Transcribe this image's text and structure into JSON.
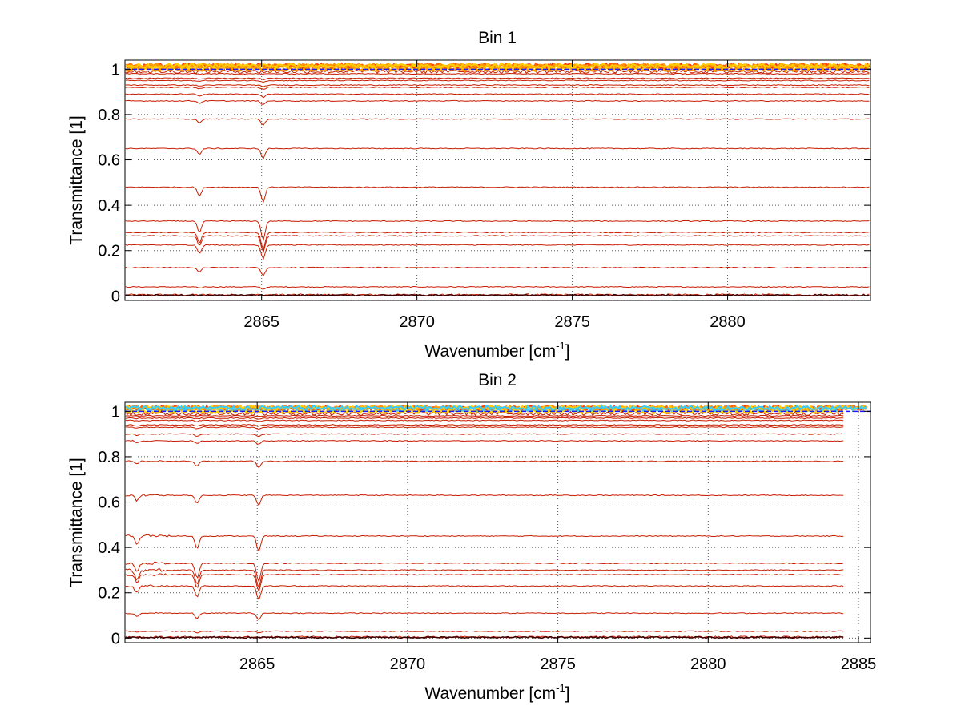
{
  "chart_data": [
    {
      "type": "line",
      "title": "Bin 1",
      "xlabel": "Wavenumber [cm",
      "xlabel_sup": "-1",
      "xlabel_end": "]",
      "ylabel": "Transmittance [1]",
      "xlim": [
        2860.6,
        2884.6
      ],
      "ylim": [
        -0.02,
        1.04
      ],
      "xticks": [
        2865,
        2870,
        2875,
        2880
      ],
      "xtick_labels": [
        "2865",
        "2870",
        "2875",
        "2880"
      ],
      "yticks": [
        0,
        0.2,
        0.4,
        0.6,
        0.8,
        1
      ],
      "ytick_labels": [
        "0",
        "0.2",
        "0.4",
        "0.6",
        "0.8",
        "1"
      ],
      "grid": true,
      "x_end": 2884.6,
      "absorption_lines": [
        {
          "x": 2863.0,
          "strength": 0.6
        },
        {
          "x": 2865.05,
          "strength": 1.0
        }
      ],
      "line_color": "#c81e00",
      "noise_colors": [
        "#ff3300",
        "#ff6600",
        "#ff9900",
        "#ffcc00"
      ],
      "reference_color": "#1a1aff",
      "series_levels": [
        0.005,
        0.04,
        0.125,
        0.225,
        0.265,
        0.28,
        0.33,
        0.48,
        0.65,
        0.78,
        0.86,
        0.89,
        0.92,
        0.93,
        0.95,
        0.96,
        0.98,
        0.99,
        1.0,
        1.01
      ]
    },
    {
      "type": "line",
      "title": "Bin 2",
      "xlabel": "Wavenumber [cm",
      "xlabel_sup": "-1",
      "xlabel_end": "]",
      "ylabel": "Transmittance [1]",
      "xlim": [
        2860.6,
        2885.4
      ],
      "ylim": [
        -0.02,
        1.04
      ],
      "xticks": [
        2865,
        2870,
        2875,
        2880,
        2885
      ],
      "xtick_labels": [
        "2865",
        "2870",
        "2875",
        "2880",
        "2885"
      ],
      "yticks": [
        0,
        0.2,
        0.4,
        0.6,
        0.8,
        1
      ],
      "ytick_labels": [
        "0",
        "0.2",
        "0.4",
        "0.6",
        "0.8",
        "1"
      ],
      "grid": true,
      "x_end": 2884.5,
      "absorption_lines": [
        {
          "x": 2861.0,
          "strength": 0.5
        },
        {
          "x": 2863.0,
          "strength": 0.8
        },
        {
          "x": 2865.05,
          "strength": 1.0
        }
      ],
      "line_color": "#c81e00",
      "noise_colors": [
        "#ff3300",
        "#ff6600",
        "#ff9900",
        "#ffcc00",
        "#33ccff"
      ],
      "reference_color": "#1a1aff",
      "series_levels": [
        0.005,
        0.03,
        0.11,
        0.23,
        0.28,
        0.3,
        0.33,
        0.45,
        0.63,
        0.78,
        0.87,
        0.9,
        0.93,
        0.94,
        0.96,
        0.97,
        0.98,
        0.99,
        1.0,
        1.01
      ]
    }
  ]
}
